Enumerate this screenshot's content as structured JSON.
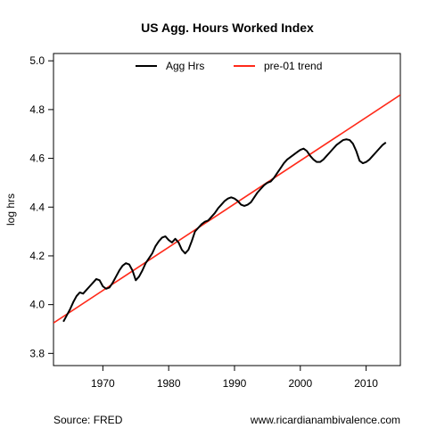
{
  "chart_data": {
    "type": "line",
    "title": "US Agg. Hours Worked Index",
    "xlabel": "",
    "ylabel": "log hrs",
    "xlim": [
      1962.5,
      2015.2
    ],
    "ylim": [
      3.75,
      5.03
    ],
    "xticks": [
      1970,
      1980,
      1990,
      2000,
      2010
    ],
    "yticks": [
      "3.8",
      "4.0",
      "4.2",
      "4.4",
      "4.6",
      "4.8",
      "5.0"
    ],
    "grid": false,
    "legend_position": "top",
    "series": [
      {
        "name": "Agg Hrs",
        "color": "#000000",
        "style": "solid",
        "x": [
          1964.0,
          1964.5,
          1965.0,
          1965.5,
          1966.0,
          1966.5,
          1967.0,
          1967.5,
          1968.0,
          1968.5,
          1969.0,
          1969.5,
          1970.0,
          1970.5,
          1971.0,
          1971.5,
          1972.0,
          1972.5,
          1973.0,
          1973.5,
          1974.0,
          1974.5,
          1975.0,
          1975.5,
          1976.0,
          1976.5,
          1977.0,
          1977.5,
          1978.0,
          1978.5,
          1979.0,
          1979.5,
          1980.0,
          1980.5,
          1981.0,
          1981.5,
          1982.0,
          1982.5,
          1983.0,
          1983.5,
          1984.0,
          1984.5,
          1985.0,
          1985.5,
          1986.0,
          1986.5,
          1987.0,
          1987.5,
          1988.0,
          1988.5,
          1989.0,
          1989.5,
          1990.0,
          1990.5,
          1991.0,
          1991.5,
          1992.0,
          1992.5,
          1993.0,
          1993.5,
          1994.0,
          1994.5,
          1995.0,
          1995.5,
          1996.0,
          1996.5,
          1997.0,
          1997.5,
          1998.0,
          1998.5,
          1999.0,
          1999.5,
          2000.0,
          2000.5,
          2001.0,
          2001.5,
          2002.0,
          2002.5,
          2003.0,
          2003.5,
          2004.0,
          2004.5,
          2005.0,
          2005.5,
          2006.0,
          2006.5,
          2007.0,
          2007.5,
          2008.0,
          2008.5,
          2009.0,
          2009.5,
          2010.0,
          2010.5,
          2011.0,
          2011.5,
          2012.0,
          2012.5,
          2013.0
        ],
        "values": [
          3.93,
          3.955,
          3.98,
          4.01,
          4.035,
          4.05,
          4.045,
          4.06,
          4.075,
          4.09,
          4.105,
          4.1,
          4.075,
          4.065,
          4.07,
          4.09,
          4.115,
          4.14,
          4.16,
          4.17,
          4.165,
          4.14,
          4.1,
          4.115,
          4.14,
          4.17,
          4.19,
          4.21,
          4.24,
          4.26,
          4.275,
          4.28,
          4.265,
          4.255,
          4.27,
          4.255,
          4.225,
          4.21,
          4.225,
          4.26,
          4.3,
          4.315,
          4.33,
          4.34,
          4.345,
          4.36,
          4.375,
          4.395,
          4.41,
          4.425,
          4.435,
          4.44,
          4.435,
          4.425,
          4.41,
          4.405,
          4.41,
          4.42,
          4.44,
          4.46,
          4.475,
          4.49,
          4.5,
          4.505,
          4.52,
          4.54,
          4.56,
          4.58,
          4.595,
          4.605,
          4.615,
          4.625,
          4.635,
          4.64,
          4.63,
          4.61,
          4.595,
          4.585,
          4.585,
          4.595,
          4.61,
          4.625,
          4.64,
          4.655,
          4.665,
          4.675,
          4.678,
          4.675,
          4.66,
          4.63,
          4.59,
          4.58,
          4.585,
          4.595,
          4.61,
          4.625,
          4.64,
          4.655,
          4.665
        ]
      },
      {
        "name": "pre-01 trend",
        "color": "#ff2a1a",
        "style": "solid",
        "x": [
          1962.5,
          2015.2
        ],
        "values": [
          3.925,
          4.86
        ]
      }
    ]
  },
  "captions": {
    "source": "Source: FRED",
    "website": "www.ricardianambivalence.com"
  }
}
